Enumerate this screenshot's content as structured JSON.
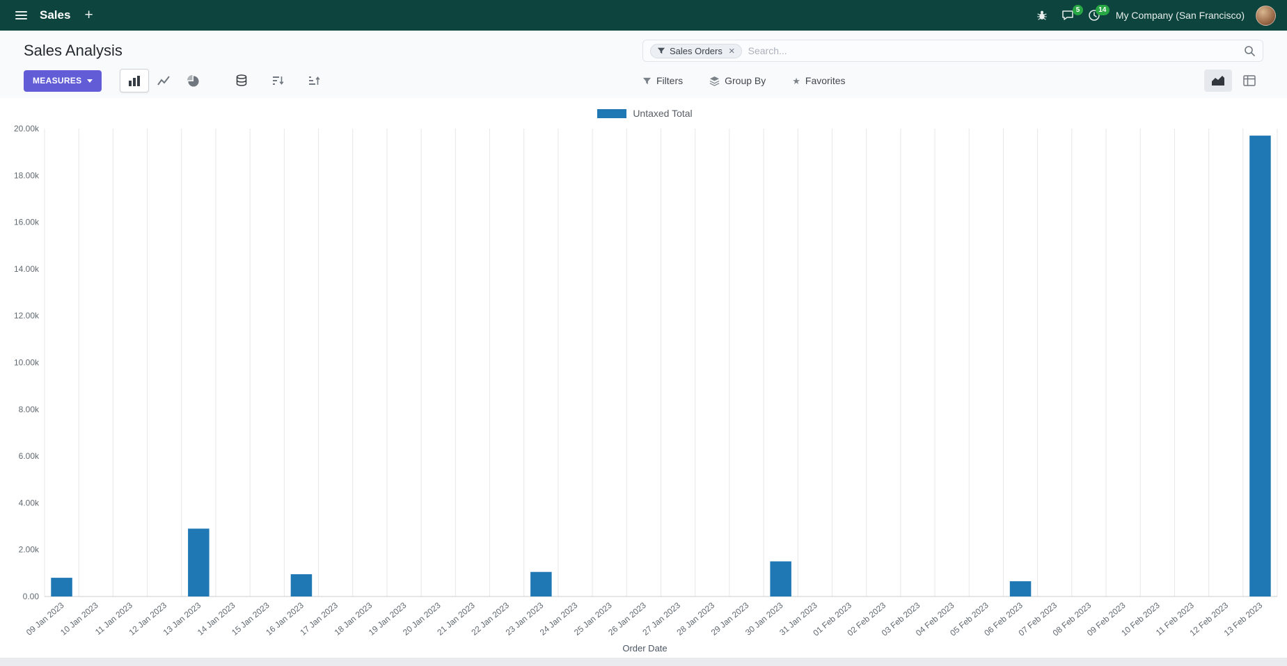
{
  "colors": {
    "navbar_bg": "#0d453e",
    "accent": "#625dd6",
    "badge": "#28a745",
    "bar": "#1f77b4"
  },
  "icons": {
    "plus": "+",
    "close": "×",
    "star": "★"
  },
  "navbar": {
    "brand": "Sales",
    "company": "My Company (San Francisco)",
    "message_badge": "5",
    "activity_badge": "14"
  },
  "control_panel": {
    "title": "Sales Analysis",
    "search": {
      "facet": "Sales Orders",
      "placeholder": "Search..."
    },
    "measures_label": "MEASURES",
    "filters_label": "Filters",
    "groupby_label": "Group By",
    "favorites_label": "Favorites"
  },
  "chart_data": {
    "type": "bar",
    "title": "",
    "xlabel": "Order Date",
    "ylabel": "",
    "ylim": [
      0,
      20000
    ],
    "ytick_step": 2000,
    "ytick_labels": [
      "0.00",
      "2.00k",
      "4.00k",
      "6.00k",
      "8.00k",
      "10.00k",
      "12.00k",
      "14.00k",
      "16.00k",
      "18.00k",
      "20.00k"
    ],
    "grid": "vertical",
    "legend_position": "top-center",
    "categories": [
      "09 Jan 2023",
      "10 Jan 2023",
      "11 Jan 2023",
      "12 Jan 2023",
      "13 Jan 2023",
      "14 Jan 2023",
      "15 Jan 2023",
      "16 Jan 2023",
      "17 Jan 2023",
      "18 Jan 2023",
      "19 Jan 2023",
      "20 Jan 2023",
      "21 Jan 2023",
      "22 Jan 2023",
      "23 Jan 2023",
      "24 Jan 2023",
      "25 Jan 2023",
      "26 Jan 2023",
      "27 Jan 2023",
      "28 Jan 2023",
      "29 Jan 2023",
      "30 Jan 2023",
      "31 Jan 2023",
      "01 Feb 2023",
      "02 Feb 2023",
      "03 Feb 2023",
      "04 Feb 2023",
      "05 Feb 2023",
      "06 Feb 2023",
      "07 Feb 2023",
      "08 Feb 2023",
      "09 Feb 2023",
      "10 Feb 2023",
      "11 Feb 2023",
      "12 Feb 2023",
      "13 Feb 2023"
    ],
    "series": [
      {
        "name": "Untaxed Total",
        "color": "#1f77b4",
        "values": [
          800,
          0,
          0,
          0,
          2900,
          0,
          0,
          950,
          0,
          0,
          0,
          0,
          0,
          0,
          1050,
          0,
          0,
          0,
          0,
          0,
          0,
          1500,
          0,
          0,
          0,
          0,
          0,
          0,
          650,
          0,
          0,
          0,
          0,
          0,
          0,
          19700
        ]
      }
    ]
  }
}
